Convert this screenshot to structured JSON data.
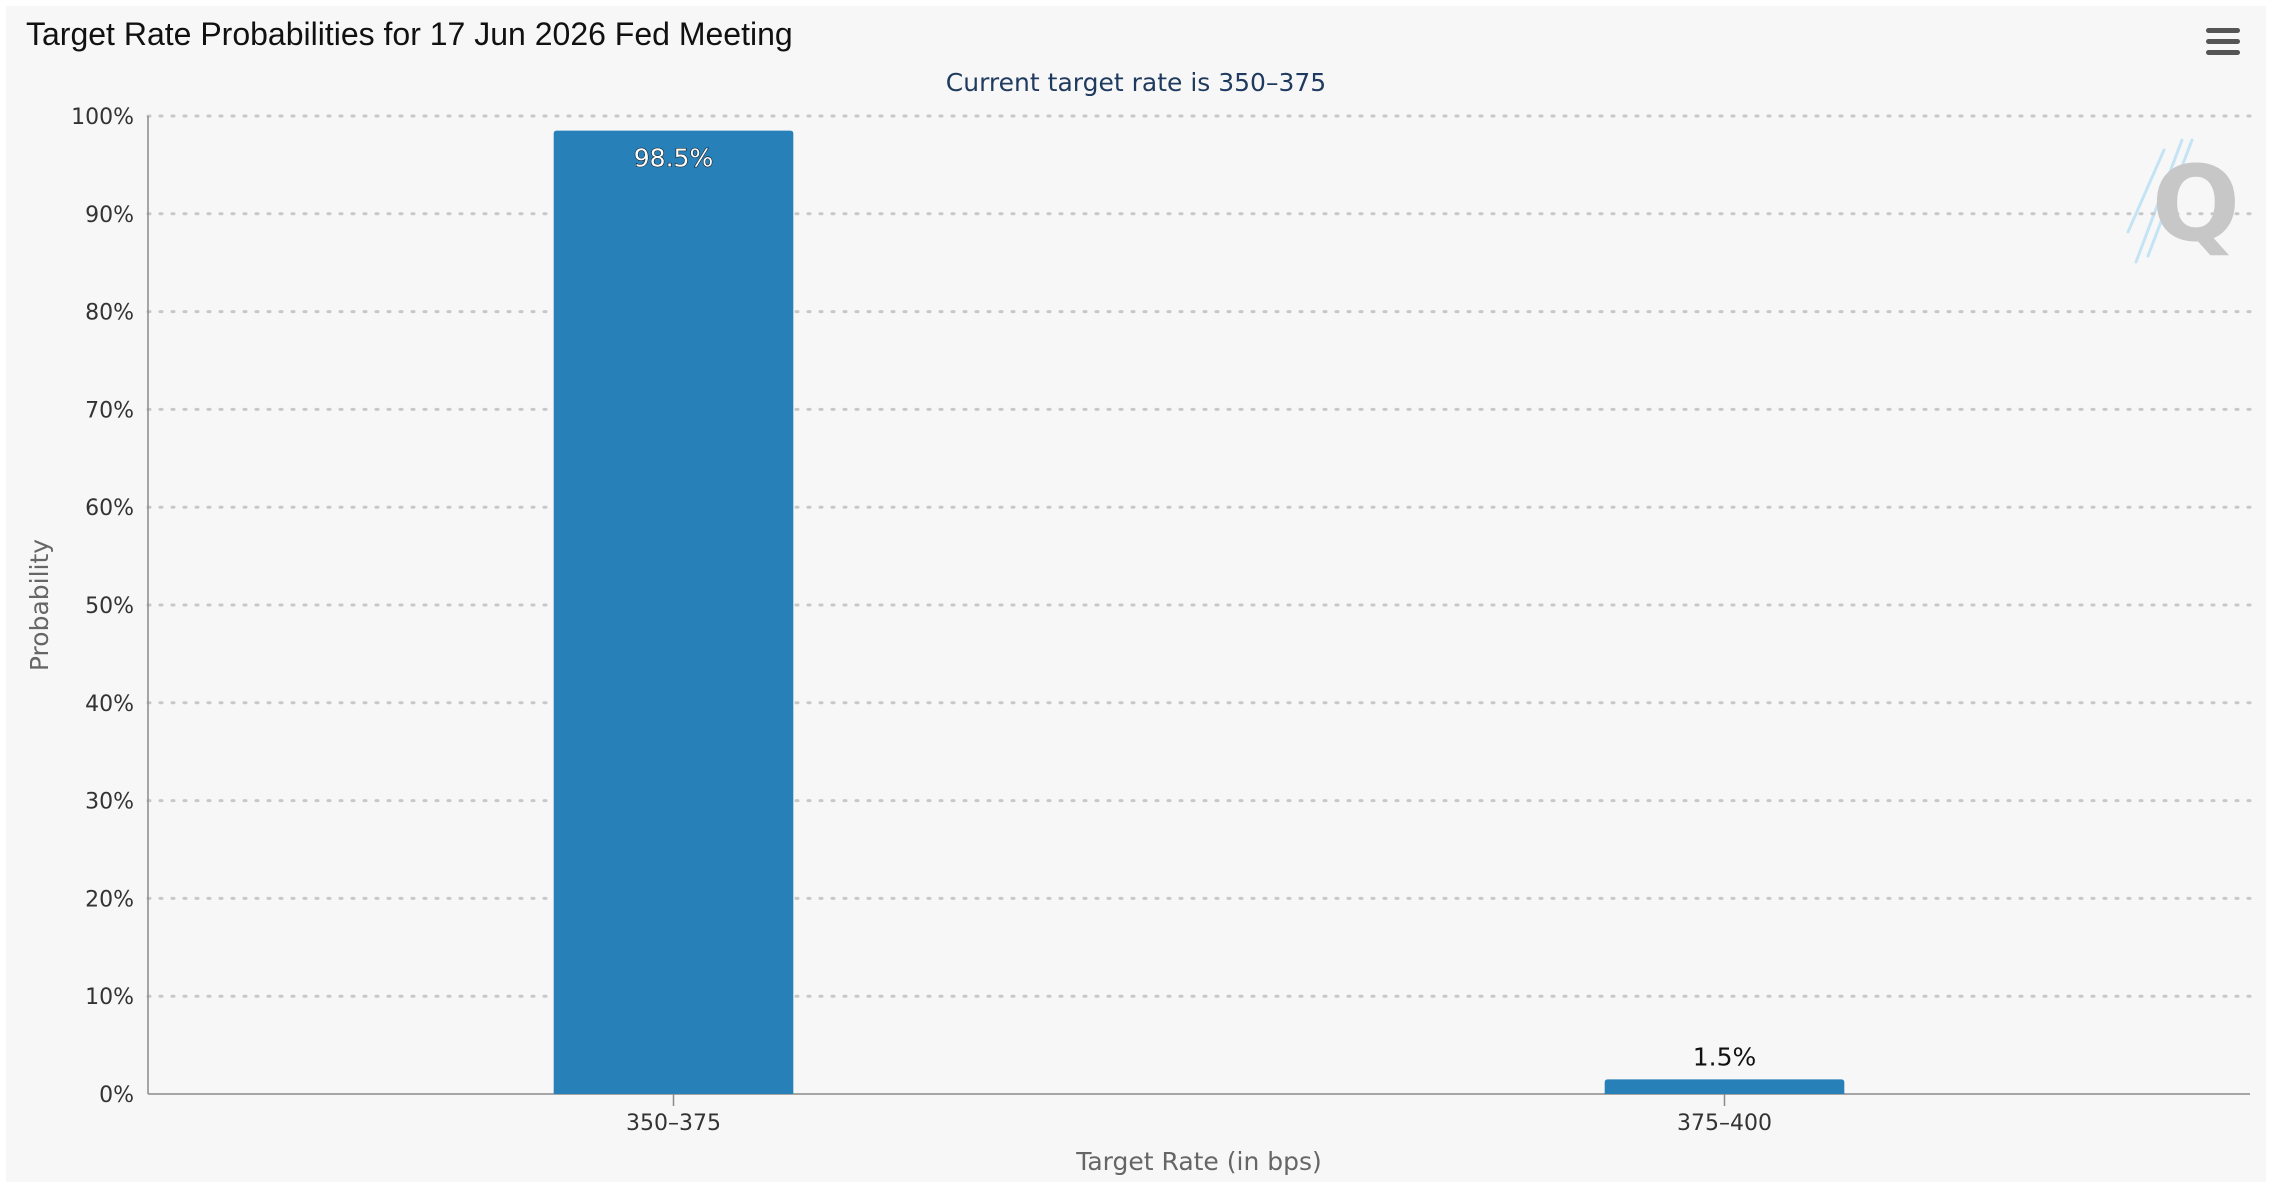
{
  "header": {
    "title": "Target Rate Probabilities for 17 Jun 2026 Fed Meeting",
    "subtitle": "Current target rate is 350–375"
  },
  "toolbar": {
    "menu_icon": "hamburger-menu-icon"
  },
  "watermark": {
    "letter": "Q"
  },
  "colors": {
    "bar": "#2880b9",
    "panel_background": "#f7f7f7",
    "subtitle": "#1f3a5f"
  },
  "chart_data": {
    "type": "bar",
    "title": "Target Rate Probabilities for 17 Jun 2026 Fed Meeting",
    "subtitle": "Current target rate is 350–375",
    "xlabel": "Target Rate (in bps)",
    "ylabel": "Probability",
    "categories": [
      "350–375",
      "375–400"
    ],
    "values": [
      98.5,
      1.5
    ],
    "data_labels": [
      "98.5%",
      "1.5%"
    ],
    "ylim": [
      0,
      100
    ],
    "yticks": [
      0,
      10,
      20,
      30,
      40,
      50,
      60,
      70,
      80,
      90,
      100
    ],
    "ytick_labels": [
      "0%",
      "10%",
      "20%",
      "30%",
      "40%",
      "50%",
      "60%",
      "70%",
      "80%",
      "90%",
      "100%"
    ],
    "grid": "horizontal dotted",
    "legend": "none"
  }
}
